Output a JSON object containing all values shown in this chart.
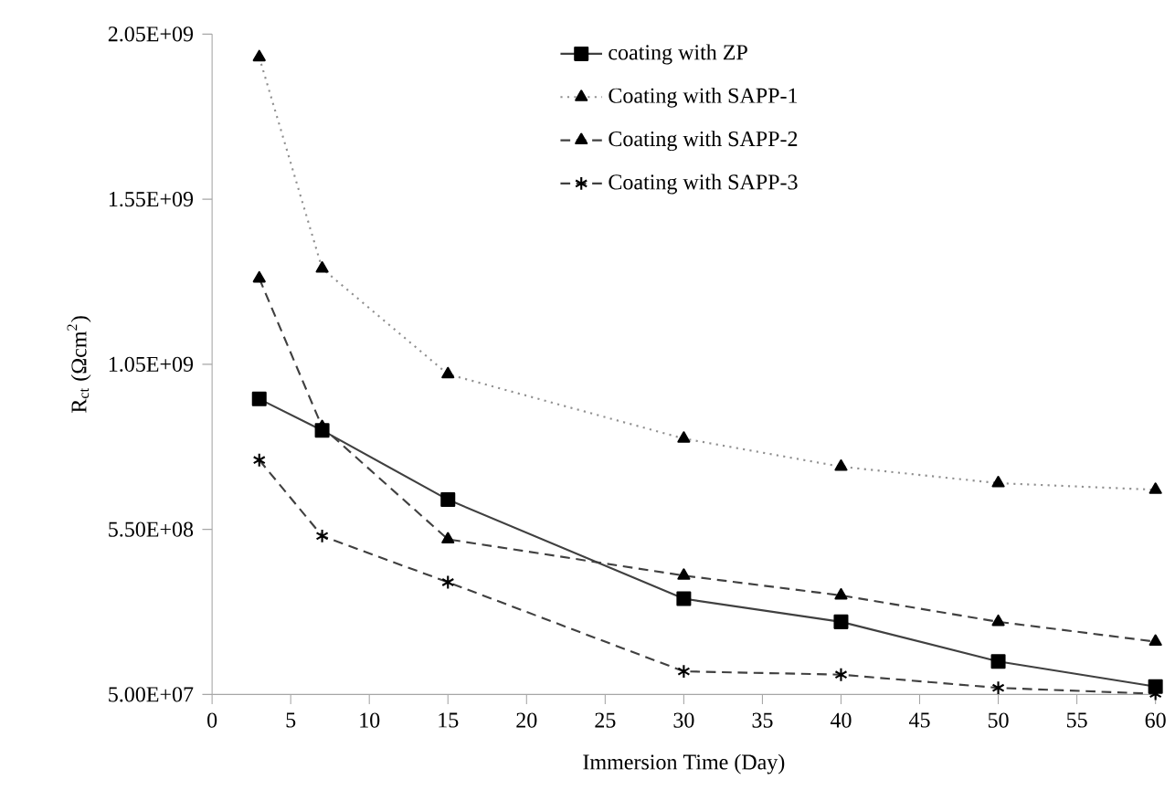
{
  "chart_data": {
    "type": "line",
    "xlabel": "Immersion Time (Day)",
    "ylabel": "R$_{ct}$ (Ωcm$^{2}$)",
    "x": [
      3,
      7,
      15,
      30,
      40,
      50,
      60
    ],
    "series": [
      {
        "name": "coating with ZP",
        "color": "#404040",
        "marker": "square",
        "line_style": "solid",
        "values": [
          945000000,
          850000000,
          640000000,
          340000000,
          270000000,
          150000000,
          74000000
        ]
      },
      {
        "name": "Coating with SAPP-1",
        "color": "#909090",
        "marker": "triangle",
        "line_style": "dotted",
        "values": [
          1980000000,
          1340000000,
          1020000000,
          825000000,
          740000000,
          690000000,
          670000000
        ]
      },
      {
        "name": "Coating with SAPP-2",
        "color": "#404040",
        "marker": "triangle",
        "line_style": "dashed",
        "values": [
          1310000000,
          860000000,
          520000000,
          410000000,
          350000000,
          270000000,
          210000000
        ]
      },
      {
        "name": "Coating with SAPP-3",
        "color": "#404040",
        "marker": "cross",
        "line_style": "dashed",
        "values": [
          760000000,
          530000000,
          390000000,
          120000000,
          110000000,
          70000000,
          52000000
        ]
      }
    ],
    "xlim": [
      0,
      60
    ],
    "xticks": [
      0,
      5,
      10,
      15,
      20,
      25,
      30,
      35,
      40,
      45,
      50,
      55,
      60
    ],
    "ylim": [
      50000000,
      2050000000
    ],
    "yticks": [
      {
        "value": 50000000,
        "label": "5.00E+07"
      },
      {
        "value": 550000000,
        "label": "5.50E+08"
      },
      {
        "value": 1050000000,
        "label": "1.05E+09"
      },
      {
        "value": 1550000000,
        "label": "1.55E+09"
      },
      {
        "value": 2050000000,
        "label": "2.05E+09"
      }
    ],
    "grid": false,
    "legend": "top right"
  }
}
